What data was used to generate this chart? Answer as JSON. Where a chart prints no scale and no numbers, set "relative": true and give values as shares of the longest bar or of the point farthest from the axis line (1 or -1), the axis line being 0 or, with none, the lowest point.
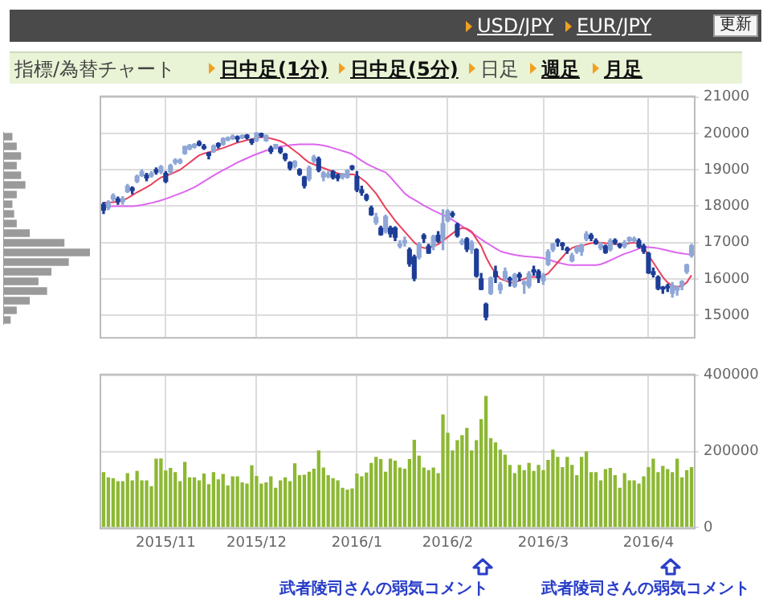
{
  "chart_data": [
    {
      "type": "other",
      "annotations": [
        "USD/JPY",
        "EUR/JPY",
        "更新",
        "指標/為替チャート",
        "日中足(1分)",
        "日中足(5分)",
        "日足",
        "週足",
        "月足"
      ]
    },
    {
      "type": "bar",
      "orientation": "horizontal",
      "relative": true,
      "color": "#9a9a9a",
      "categories": [
        null,
        null,
        null,
        null,
        null,
        null,
        null,
        null,
        null,
        null,
        null,
        null,
        null,
        null,
        null,
        null,
        null,
        null,
        null,
        null
      ],
      "values": [
        0.1,
        0.15,
        0.2,
        0.15,
        0.2,
        0.25,
        0.15,
        0.1,
        0.12,
        0.15,
        0.3,
        0.7,
        1.0,
        0.75,
        0.55,
        0.4,
        0.5,
        0.3,
        0.15,
        0.08
      ]
    },
    {
      "type": "candlestick",
      "ylim": [
        14400,
        21000
      ],
      "yticks": [
        15000,
        16000,
        17000,
        18000,
        19000,
        20000,
        21000
      ],
      "grid": true,
      "tick_labels": "y",
      "categories": [
        null,
        null,
        null,
        null,
        null,
        null,
        null,
        null,
        null,
        null,
        null,
        null,
        null,
        "2015/11",
        null,
        null,
        null,
        null,
        null,
        null,
        null,
        null,
        null,
        null,
        null,
        null,
        null,
        null,
        null,
        null,
        null,
        null,
        "2015/12",
        null,
        null,
        null,
        null,
        null,
        null,
        null,
        null,
        null,
        null,
        null,
        null,
        null,
        null,
        null,
        null,
        null,
        null,
        null,
        null,
        "2016/1",
        null,
        null,
        null,
        null,
        null,
        null,
        null,
        null,
        null,
        null,
        null,
        null,
        null,
        null,
        null,
        null,
        null,
        null,
        "2016/2",
        null,
        null,
        null,
        null,
        null,
        null,
        null,
        null,
        null,
        null,
        null,
        null,
        null,
        null,
        null,
        null,
        null,
        null,
        null,
        "2016/3",
        null,
        null,
        null,
        null,
        null,
        null,
        null,
        null,
        null,
        null,
        null,
        null,
        null,
        null,
        null,
        null,
        null,
        null,
        null,
        null,
        null,
        "2016/4",
        null,
        null,
        null,
        null,
        null,
        null,
        null,
        null,
        null
      ],
      "ohlc": [
        [
          18050,
          18100,
          17800,
          17891
        ],
        [
          17950,
          18150,
          17900,
          18097
        ],
        [
          18200,
          18340,
          18150,
          18291
        ],
        [
          18200,
          18250,
          18050,
          18131
        ],
        [
          18130,
          18260,
          18050,
          18207
        ],
        [
          18400,
          18600,
          18380,
          18554
        ],
        [
          18500,
          18530,
          18340,
          18435
        ],
        [
          18680,
          18850,
          18650,
          18825
        ],
        [
          18840,
          19000,
          18820,
          18947
        ],
        [
          18850,
          18900,
          18700,
          18777
        ],
        [
          18830,
          18950,
          18800,
          18903
        ],
        [
          19000,
          19050,
          18880,
          18935
        ],
        [
          18950,
          19120,
          18900,
          19083
        ],
        [
          18900,
          18950,
          18650,
          18683
        ],
        [
          18950,
          19150,
          18900,
          19116
        ],
        [
          19200,
          19300,
          19150,
          19265
        ],
        [
          19200,
          19300,
          19170,
          19265
        ],
        [
          19450,
          19650,
          19430,
          19642
        ],
        [
          19580,
          19700,
          19550,
          19671
        ],
        [
          19620,
          19720,
          19600,
          19697
        ],
        [
          19760,
          19800,
          19660,
          19691
        ],
        [
          19650,
          19700,
          19560,
          19596
        ],
        [
          19460,
          19480,
          19300,
          19393
        ],
        [
          19500,
          19680,
          19480,
          19649
        ],
        [
          19720,
          19740,
          19600,
          19649
        ],
        [
          19700,
          19880,
          19680,
          19859
        ],
        [
          19820,
          19900,
          19800,
          19879
        ],
        [
          19860,
          19960,
          19840,
          19924
        ],
        [
          19910,
          19930,
          19770,
          19847
        ],
        [
          19880,
          19960,
          19860,
          19944
        ],
        [
          19950,
          19970,
          19850,
          19883
        ],
        [
          19830,
          19850,
          19700,
          19747
        ],
        [
          19800,
          20020,
          19780,
          20012
        ],
        [
          19990,
          20010,
          19900,
          19938
        ],
        [
          19800,
          19960,
          19790,
          19939
        ],
        [
          19600,
          19650,
          19450,
          19504
        ],
        [
          19600,
          19700,
          19580,
          19698
        ],
        [
          19600,
          19620,
          19450,
          19492
        ],
        [
          19430,
          19450,
          19250,
          19301
        ],
        [
          19200,
          19220,
          19000,
          19046
        ],
        [
          19100,
          19250,
          19050,
          19230
        ],
        [
          19000,
          19030,
          18850,
          18883
        ],
        [
          18800,
          18820,
          18500,
          18565
        ],
        [
          18750,
          19100,
          18700,
          19049
        ],
        [
          19250,
          19400,
          19200,
          19353
        ],
        [
          19300,
          19350,
          18950,
          18986
        ],
        [
          18800,
          18950,
          18700,
          18916
        ],
        [
          18820,
          18950,
          18780,
          18886
        ],
        [
          18950,
          18980,
          18750,
          18789
        ],
        [
          18850,
          18880,
          18700,
          18769
        ],
        [
          18800,
          18900,
          18750,
          18873
        ],
        [
          18800,
          19000,
          18770,
          18982
        ],
        [
          19100,
          19120,
          19000,
          19033
        ],
        [
          18820,
          18950,
          18400,
          18450
        ],
        [
          18450,
          18550,
          18300,
          18374
        ],
        [
          18300,
          18330,
          18150,
          18191
        ],
        [
          17950,
          18000,
          17750,
          17767
        ],
        [
          17550,
          17800,
          17500,
          17697
        ],
        [
          17400,
          17450,
          17200,
          17218
        ],
        [
          17300,
          17750,
          17260,
          17715
        ],
        [
          17400,
          17450,
          17150,
          17240
        ],
        [
          17400,
          17430,
          17050,
          17147
        ],
        [
          16900,
          17050,
          16850,
          16955
        ],
        [
          16990,
          17150,
          16900,
          17048
        ],
        [
          16800,
          16850,
          16350,
          16416
        ],
        [
          16600,
          16650,
          15950,
          16017
        ],
        [
          16600,
          17000,
          16550,
          16958
        ],
        [
          17200,
          17240,
          17000,
          17110
        ],
        [
          16900,
          16950,
          16700,
          16708
        ],
        [
          16900,
          17200,
          16800,
          17163
        ],
        [
          17200,
          17300,
          17000,
          17041
        ],
        [
          17100,
          17900,
          16800,
          17518
        ],
        [
          17600,
          17900,
          17570,
          17865
        ],
        [
          17800,
          17850,
          17700,
          17750
        ],
        [
          17500,
          17530,
          17150,
          17191
        ],
        [
          16980,
          17100,
          16940,
          17044
        ],
        [
          17100,
          17130,
          16750,
          16819
        ],
        [
          16800,
          17050,
          16700,
          17004
        ],
        [
          16800,
          16830,
          16050,
          16085
        ],
        [
          16000,
          16150,
          15700,
          15713
        ],
        [
          15300,
          15330,
          14870,
          14952
        ],
        [
          15600,
          16050,
          15570,
          16022
        ],
        [
          16200,
          16350,
          15900,
          16054
        ],
        [
          15700,
          15900,
          15600,
          15837
        ],
        [
          16000,
          16300,
          15950,
          16196
        ],
        [
          16000,
          16050,
          15800,
          15967
        ],
        [
          15800,
          16150,
          15770,
          16111
        ],
        [
          16120,
          16170,
          15950,
          16052
        ],
        [
          15850,
          15950,
          15600,
          15916
        ],
        [
          15800,
          16200,
          15750,
          16140
        ],
        [
          16250,
          16350,
          16100,
          16188
        ],
        [
          16200,
          16250,
          15900,
          16027
        ],
        [
          15950,
          16150,
          15850,
          16085
        ],
        [
          16400,
          16800,
          16370,
          16747
        ],
        [
          16800,
          16970,
          16750,
          16960
        ],
        [
          17070,
          17100,
          16900,
          17015
        ],
        [
          16980,
          17000,
          16800,
          16911
        ],
        [
          16840,
          16870,
          16700,
          16784
        ],
        [
          16500,
          16700,
          16470,
          16642
        ],
        [
          16750,
          16900,
          16700,
          16853
        ],
        [
          16750,
          16950,
          16650,
          16939
        ],
        [
          17100,
          17300,
          17050,
          17233
        ],
        [
          17200,
          17250,
          17050,
          17117
        ],
        [
          17050,
          17100,
          16950,
          16975
        ],
        [
          16850,
          17000,
          16800,
          16937
        ],
        [
          16900,
          16930,
          16700,
          16725
        ],
        [
          16800,
          17100,
          16770,
          17049
        ],
        [
          17060,
          17100,
          16950,
          17001
        ],
        [
          16950,
          16970,
          16850,
          16892
        ],
        [
          16900,
          17050,
          16850,
          17002
        ],
        [
          17050,
          17150,
          17000,
          17135
        ],
        [
          17050,
          17150,
          17020,
          17104
        ],
        [
          17050,
          17100,
          16850,
          16879
        ],
        [
          16900,
          16950,
          16700,
          16759
        ],
        [
          16700,
          16730,
          16150,
          16164
        ],
        [
          16200,
          16300,
          16050,
          16123
        ],
        [
          16050,
          16080,
          15700,
          15733
        ],
        [
          15770,
          15790,
          15600,
          15716
        ],
        [
          15800,
          15850,
          15650,
          15750
        ],
        [
          15600,
          15900,
          15500,
          15822
        ],
        [
          15690,
          15800,
          15550,
          15751
        ],
        [
          15800,
          15950,
          15700,
          15928
        ],
        [
          16200,
          16400,
          16150,
          16381
        ],
        [
          16650,
          16950,
          16600,
          16911
        ]
      ],
      "series": [
        {
          "type": "line",
          "color": "#e8405c",
          "values": [
            18100,
            18100,
            18110,
            18120,
            18150,
            18220,
            18300,
            18380,
            18450,
            18520,
            18600,
            18700,
            18790,
            18830,
            18880,
            18940,
            19000,
            19100,
            19200,
            19300,
            19400,
            19450,
            19480,
            19520,
            19560,
            19600,
            19650,
            19700,
            19750,
            19780,
            19820,
            19840,
            19880,
            19900,
            19900,
            19860,
            19830,
            19790,
            19720,
            19620,
            19520,
            19420,
            19300,
            19200,
            19150,
            19100,
            19050,
            19000,
            18950,
            18900,
            18880,
            18870,
            18880,
            18850,
            18750,
            18650,
            18500,
            18350,
            18150,
            17950,
            17780,
            17600,
            17450,
            17300,
            17150,
            17000,
            16900,
            16850,
            16850,
            16900,
            16950,
            17050,
            17150,
            17250,
            17350,
            17400,
            17380,
            17300,
            17100,
            16900,
            16600,
            16350,
            16150,
            16000,
            15950,
            15900,
            15900,
            15950,
            16000,
            16050,
            16050,
            16050,
            16080,
            16150,
            16300,
            16450,
            16600,
            16750,
            16850,
            16900,
            16900,
            16950,
            16980,
            17000,
            17000,
            16980,
            16970,
            16960,
            16950,
            16950,
            16980,
            17000,
            16950,
            16850,
            16650,
            16450,
            16250,
            16050,
            15900,
            15800,
            15780,
            15800,
            15900,
            16100
          ]
        },
        {
          "type": "line",
          "color": "#dd66ee",
          "values": [
            18000,
            18000,
            18000,
            18000,
            18000,
            18000,
            18000,
            18010,
            18030,
            18060,
            18090,
            18120,
            18160,
            18200,
            18250,
            18300,
            18350,
            18400,
            18460,
            18520,
            18600,
            18680,
            18760,
            18840,
            18920,
            18990,
            19060,
            19130,
            19200,
            19260,
            19320,
            19380,
            19430,
            19480,
            19530,
            19570,
            19610,
            19640,
            19660,
            19680,
            19690,
            19700,
            19700,
            19700,
            19700,
            19690,
            19670,
            19640,
            19600,
            19560,
            19520,
            19480,
            19430,
            19340,
            19250,
            19170,
            19100,
            19040,
            18980,
            18930,
            18800,
            18650,
            18500,
            18350,
            18250,
            18180,
            18100,
            18020,
            17950,
            17880,
            17820,
            17760,
            17700,
            17620,
            17540,
            17450,
            17360,
            17270,
            17180,
            17090,
            17000,
            16920,
            16840,
            16760,
            16720,
            16690,
            16660,
            16640,
            16620,
            16610,
            16600,
            16590,
            16570,
            16530,
            16490,
            16450,
            16420,
            16390,
            16380,
            16380,
            16380,
            16380,
            16380,
            16380,
            16400,
            16450,
            16510,
            16570,
            16630,
            16690,
            16730,
            16780,
            16830,
            16870,
            16870,
            16860,
            16840,
            16810,
            16780,
            16750,
            16720,
            16700,
            16680,
            16660
          ]
        }
      ]
    },
    {
      "type": "bar",
      "color": "#8cb833",
      "ylim": [
        0,
        400000
      ],
      "yticks": [
        0,
        200000,
        400000
      ],
      "grid": true,
      "categories": [
        null,
        null,
        null,
        null,
        null,
        null,
        null,
        null,
        null,
        null,
        null,
        null,
        null,
        "2015/11",
        null,
        null,
        null,
        null,
        null,
        null,
        null,
        null,
        null,
        null,
        null,
        null,
        null,
        null,
        null,
        null,
        null,
        null,
        "2015/12",
        null,
        null,
        null,
        null,
        null,
        null,
        null,
        null,
        null,
        null,
        null,
        null,
        null,
        null,
        null,
        null,
        null,
        null,
        null,
        null,
        "2016/1",
        null,
        null,
        null,
        null,
        null,
        null,
        null,
        null,
        null,
        null,
        null,
        null,
        null,
        null,
        null,
        null,
        null,
        null,
        "2016/2",
        null,
        null,
        null,
        null,
        null,
        null,
        null,
        null,
        null,
        null,
        null,
        null,
        null,
        null,
        null,
        null,
        null,
        null,
        null,
        "2016/3",
        null,
        null,
        null,
        null,
        null,
        null,
        null,
        null,
        null,
        null,
        null,
        null,
        null,
        null,
        null,
        null,
        null,
        null,
        null,
        null,
        null,
        "2016/4",
        null,
        null,
        null,
        null,
        null,
        null,
        null,
        null,
        null
      ],
      "values": [
        146000,
        132000,
        130000,
        122000,
        122000,
        143000,
        124000,
        149000,
        124000,
        124000,
        109000,
        181000,
        182000,
        150000,
        157000,
        146000,
        122000,
        173000,
        132000,
        132000,
        124000,
        142000,
        114000,
        146000,
        127000,
        141000,
        111000,
        135000,
        135000,
        119000,
        116000,
        164000,
        136000,
        116000,
        119000,
        135000,
        105000,
        124000,
        132000,
        122000,
        169000,
        138000,
        139000,
        147000,
        155000,
        203000,
        158000,
        138000,
        130000,
        124000,
        105000,
        100000,
        103000,
        142000,
        135000,
        145000,
        170000,
        186000,
        180000,
        147000,
        181000,
        176000,
        158000,
        155000,
        180000,
        231000,
        189000,
        158000,
        151000,
        158000,
        143000,
        297000,
        249000,
        203000,
        230000,
        243000,
        262000,
        203000,
        230000,
        285000,
        346000,
        235000,
        224000,
        205000,
        192000,
        165000,
        143000,
        165000,
        151000,
        170000,
        149000,
        165000,
        151000,
        178000,
        205000,
        186000,
        159000,
        186000,
        165000,
        138000,
        186000,
        200000,
        146000,
        146000,
        124000,
        154000,
        157000,
        138000,
        105000,
        143000,
        124000,
        124000,
        116000,
        135000,
        159000,
        181000,
        146000,
        162000,
        154000,
        146000,
        181000,
        132000,
        151000,
        159000
      ],
      "annotations": [
        "武者陵司さんの弱気コメント",
        "武者陵司さんの弱気コメント"
      ]
    }
  ]
}
